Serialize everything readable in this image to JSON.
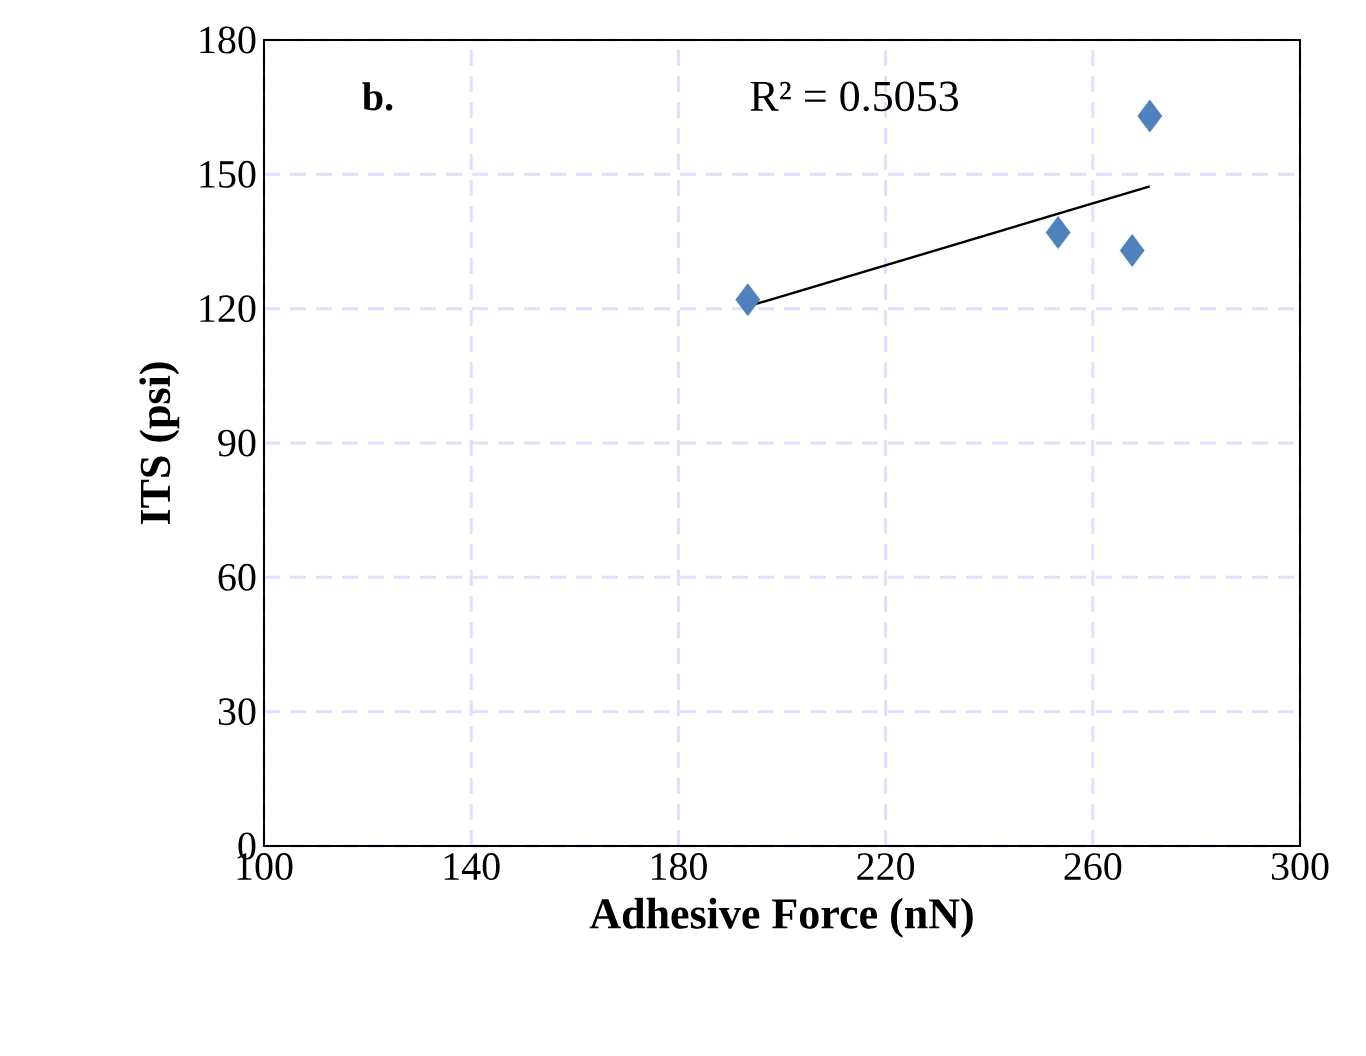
{
  "chart_data": {
    "type": "scatter",
    "xlabel": "Adhesive Force  (nN)",
    "ylabel": "ITS (psi)",
    "xlim": [
      100,
      300
    ],
    "xticks": [
      100,
      140,
      180,
      220,
      260,
      300
    ],
    "ylim": [
      0,
      180
    ],
    "yticks": [
      0,
      30,
      60,
      90,
      120,
      150,
      180
    ],
    "grid": true,
    "annotations": [
      "b.",
      "R² = 0.5053"
    ],
    "series": [
      {
        "color": "#4f81bd",
        "marker": "diamond",
        "x": [
          193.4,
          253.3,
          267.6,
          271
        ],
        "values": [
          122,
          137,
          133,
          163
        ]
      },
      {
        "type": "line",
        "color": "#000000",
        "marker": "none",
        "line_style": "solid",
        "x": [
          193.4,
          271
        ],
        "values": [
          120.5,
          147.3
        ]
      }
    ]
  }
}
